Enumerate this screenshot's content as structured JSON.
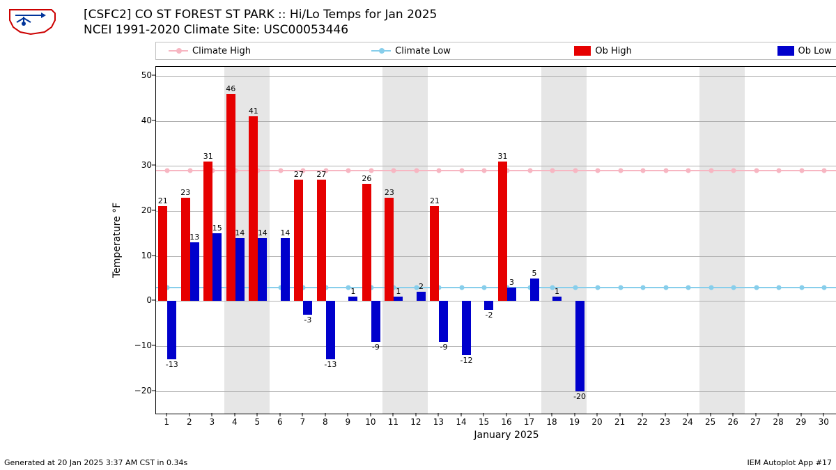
{
  "title_line1": "[CSFC2] CO ST FOREST ST PARK :: Hi/Lo Temps for Jan 2025",
  "title_line2": "NCEI 1991-2020 Climate Site: USC00053446",
  "xlabel": "January 2025",
  "ylabel": "Temperature °F",
  "footer_left": "Generated at 20 Jan 2025 3:37 AM CST in 0.34s",
  "footer_right": "IEM Autoplot App #17",
  "legend": {
    "climate_high": "Climate High",
    "climate_low": "Climate Low",
    "ob_high": "Ob High",
    "ob_low": "Ob Low"
  },
  "colors": {
    "climate_high": "#f7b6c2",
    "climate_low": "#87ceeb",
    "ob_high": "#e60000",
    "ob_low": "#0000cc",
    "weekend": "#e6e6e6",
    "grid": "#b0b0b0",
    "background": "#ffffff"
  },
  "axes": {
    "ymin": -25,
    "ymax": 52,
    "yticks": [
      -20,
      -10,
      0,
      10,
      20,
      30,
      40,
      50
    ],
    "xmin": 0.5,
    "xmax": 31.5,
    "days": 31
  },
  "climate_high_value": 29,
  "climate_low_value": 3,
  "weekends": [
    [
      4,
      5
    ],
    [
      11,
      12
    ],
    [
      18,
      19
    ],
    [
      25,
      26
    ]
  ],
  "ob_high": {
    "1": 21,
    "2": 23,
    "3": 31,
    "4": 46,
    "5": 41,
    "7": 27,
    "8": 27,
    "10": 26,
    "11": 23,
    "13": 21,
    "16": 31
  },
  "ob_low": {
    "1": -13,
    "2": 13,
    "3": 15,
    "4": 14,
    "5": 14,
    "6": 14,
    "7": -3,
    "8": -13,
    "9": 1,
    "10": -9,
    "11": 1,
    "12": 2,
    "13": -9,
    "14": -12,
    "15": -2,
    "16": 3,
    "17": 5,
    "18": 1,
    "19": -20
  },
  "bar_width": 0.4
}
